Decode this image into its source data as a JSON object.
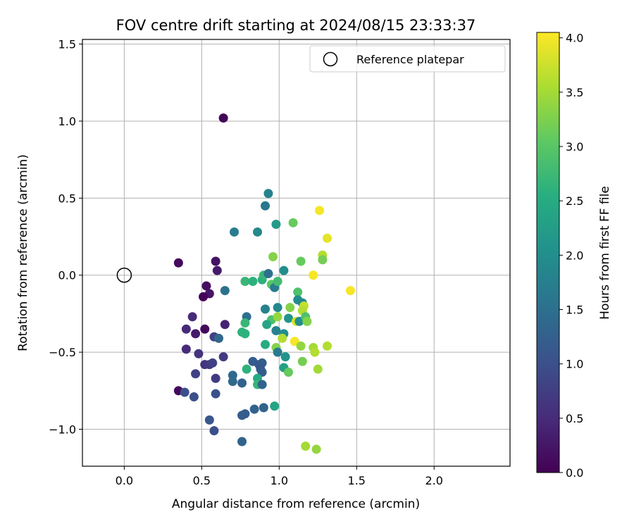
{
  "chart_data": {
    "type": "scatter",
    "title": "FOV centre drift starting at 2024/08/15 23:33:37",
    "xlabel": "Angular distance from reference (arcmin)",
    "ylabel": "Rotation from reference (arcmin)",
    "xlim": [
      -0.27,
      2.49
    ],
    "ylim": [
      -1.24,
      1.53
    ],
    "xticks": [
      0.0,
      0.5,
      1.0,
      1.5,
      2.0
    ],
    "xtick_labels": [
      "0.0",
      "0.5",
      "1.0",
      "1.5",
      "2.0"
    ],
    "yticks": [
      -1.0,
      -0.5,
      0.0,
      0.5,
      1.0,
      1.5
    ],
    "ytick_labels": [
      "−1.0",
      "−0.5",
      "0.0",
      "0.5",
      "1.0",
      "1.5"
    ],
    "grid": true,
    "legend_position": "top-right",
    "legend": [
      {
        "label": "Reference platepar",
        "marker": "open-circle"
      }
    ],
    "reference_point": {
      "x": 0.0,
      "y": 0.0
    },
    "colorbar": {
      "label": "Hours from first FF file",
      "colormap": "viridis",
      "min": 0.0,
      "max": 4.05,
      "ticks": [
        0.0,
        0.5,
        1.0,
        1.5,
        2.0,
        2.5,
        3.0,
        3.5,
        4.0
      ],
      "tick_labels": [
        "0.0",
        "0.5",
        "1.0",
        "1.5",
        "2.0",
        "2.5",
        "3.0",
        "3.5",
        "4.0"
      ]
    },
    "points": [
      {
        "x": 0.64,
        "y": 1.02,
        "h": 0.05
      },
      {
        "x": 0.35,
        "y": 0.08,
        "h": 0.1
      },
      {
        "x": 0.59,
        "y": 0.09,
        "h": 0.2
      },
      {
        "x": 0.6,
        "y": 0.03,
        "h": 0.3
      },
      {
        "x": 0.53,
        "y": -0.07,
        "h": 0.15
      },
      {
        "x": 0.55,
        "y": -0.12,
        "h": 0.25
      },
      {
        "x": 0.51,
        "y": -0.14,
        "h": 0.05
      },
      {
        "x": 0.44,
        "y": -0.27,
        "h": 0.5
      },
      {
        "x": 0.65,
        "y": -0.32,
        "h": 0.4
      },
      {
        "x": 0.4,
        "y": -0.35,
        "h": 0.5
      },
      {
        "x": 0.46,
        "y": -0.38,
        "h": 0.3
      },
      {
        "x": 0.52,
        "y": -0.35,
        "h": 0.1
      },
      {
        "x": 0.58,
        "y": -0.4,
        "h": 0.8
      },
      {
        "x": 0.61,
        "y": -0.41,
        "h": 1.4
      },
      {
        "x": 0.4,
        "y": -0.48,
        "h": 0.5
      },
      {
        "x": 0.48,
        "y": -0.51,
        "h": 0.6
      },
      {
        "x": 0.64,
        "y": -0.53,
        "h": 0.7
      },
      {
        "x": 0.52,
        "y": -0.58,
        "h": 0.6
      },
      {
        "x": 0.55,
        "y": -0.58,
        "h": 0.7
      },
      {
        "x": 0.57,
        "y": -0.57,
        "h": 0.8
      },
      {
        "x": 0.46,
        "y": -0.64,
        "h": 0.8
      },
      {
        "x": 0.59,
        "y": -0.67,
        "h": 0.7
      },
      {
        "x": 0.35,
        "y": -0.75,
        "h": 0.1
      },
      {
        "x": 0.39,
        "y": -0.76,
        "h": 1.0
      },
      {
        "x": 0.45,
        "y": -0.79,
        "h": 1.0
      },
      {
        "x": 0.59,
        "y": -0.77,
        "h": 1.0
      },
      {
        "x": 0.55,
        "y": -0.94,
        "h": 1.1
      },
      {
        "x": 0.58,
        "y": -1.01,
        "h": 1.0
      },
      {
        "x": 0.65,
        "y": -0.1,
        "h": 1.5
      },
      {
        "x": 0.71,
        "y": 0.28,
        "h": 1.7
      },
      {
        "x": 0.86,
        "y": 0.28,
        "h": 1.9
      },
      {
        "x": 0.91,
        "y": 0.45,
        "h": 1.6
      },
      {
        "x": 0.93,
        "y": 0.53,
        "h": 1.8
      },
      {
        "x": 0.98,
        "y": 0.33,
        "h": 2.2
      },
      {
        "x": 1.09,
        "y": 0.34,
        "h": 3.1
      },
      {
        "x": 0.79,
        "y": -0.27,
        "h": 1.5
      },
      {
        "x": 0.78,
        "y": -0.31,
        "h": 2.7
      },
      {
        "x": 0.76,
        "y": -0.37,
        "h": 2.6
      },
      {
        "x": 0.78,
        "y": -0.38,
        "h": 2.6
      },
      {
        "x": 0.7,
        "y": -0.65,
        "h": 1.4
      },
      {
        "x": 0.7,
        "y": -0.69,
        "h": 1.4
      },
      {
        "x": 0.76,
        "y": -0.7,
        "h": 1.3
      },
      {
        "x": 0.79,
        "y": -0.61,
        "h": 2.6
      },
      {
        "x": 0.83,
        "y": -0.56,
        "h": 1.2
      },
      {
        "x": 0.87,
        "y": -0.58,
        "h": 1.1
      },
      {
        "x": 0.89,
        "y": -0.57,
        "h": 1.2
      },
      {
        "x": 0.88,
        "y": -0.61,
        "h": 1.1
      },
      {
        "x": 0.89,
        "y": -0.63,
        "h": 1.2
      },
      {
        "x": 0.86,
        "y": -0.67,
        "h": 2.5
      },
      {
        "x": 0.86,
        "y": -0.71,
        "h": 2.7
      },
      {
        "x": 0.89,
        "y": -0.71,
        "h": 1.3
      },
      {
        "x": 0.76,
        "y": -0.91,
        "h": 1.2
      },
      {
        "x": 0.78,
        "y": -0.9,
        "h": 1.2
      },
      {
        "x": 0.84,
        "y": -0.87,
        "h": 1.3
      },
      {
        "x": 0.9,
        "y": -0.86,
        "h": 1.3
      },
      {
        "x": 0.97,
        "y": -0.85,
        "h": 2.4
      },
      {
        "x": 0.76,
        "y": -1.08,
        "h": 1.3
      },
      {
        "x": 0.78,
        "y": -0.04,
        "h": 2.7
      },
      {
        "x": 0.83,
        "y": -0.04,
        "h": 2.6
      },
      {
        "x": 0.89,
        "y": -0.03,
        "h": 2.6
      },
      {
        "x": 0.9,
        "y": 0.0,
        "h": 2.7
      },
      {
        "x": 0.93,
        "y": 0.01,
        "h": 1.5
      },
      {
        "x": 0.95,
        "y": -0.06,
        "h": 3.0
      },
      {
        "x": 0.97,
        "y": -0.08,
        "h": 1.7
      },
      {
        "x": 0.99,
        "y": -0.04,
        "h": 2.8
      },
      {
        "x": 1.03,
        "y": 0.03,
        "h": 2.0
      },
      {
        "x": 0.96,
        "y": 0.12,
        "h": 3.3
      },
      {
        "x": 1.14,
        "y": 0.09,
        "h": 3.1
      },
      {
        "x": 1.12,
        "y": -0.11,
        "h": 2.9
      },
      {
        "x": 1.12,
        "y": -0.16,
        "h": 2.0
      },
      {
        "x": 1.15,
        "y": -0.18,
        "h": 1.9
      },
      {
        "x": 0.91,
        "y": -0.22,
        "h": 1.8
      },
      {
        "x": 0.99,
        "y": -0.21,
        "h": 1.9
      },
      {
        "x": 1.07,
        "y": -0.21,
        "h": 3.3
      },
      {
        "x": 1.16,
        "y": -0.2,
        "h": 3.7
      },
      {
        "x": 1.15,
        "y": -0.23,
        "h": 3.6
      },
      {
        "x": 0.95,
        "y": -0.29,
        "h": 2.9
      },
      {
        "x": 0.92,
        "y": -0.32,
        "h": 2.4
      },
      {
        "x": 0.99,
        "y": -0.27,
        "h": 3.4
      },
      {
        "x": 1.06,
        "y": -0.28,
        "h": 2.1
      },
      {
        "x": 1.11,
        "y": -0.3,
        "h": 3.8
      },
      {
        "x": 1.13,
        "y": -0.3,
        "h": 2.0
      },
      {
        "x": 1.17,
        "y": -0.27,
        "h": 2.9
      },
      {
        "x": 1.18,
        "y": -0.3,
        "h": 3.3
      },
      {
        "x": 0.98,
        "y": -0.36,
        "h": 1.8
      },
      {
        "x": 1.03,
        "y": -0.38,
        "h": 2.0
      },
      {
        "x": 1.02,
        "y": -0.41,
        "h": 3.6
      },
      {
        "x": 0.91,
        "y": -0.45,
        "h": 2.5
      },
      {
        "x": 0.98,
        "y": -0.47,
        "h": 3.3
      },
      {
        "x": 0.99,
        "y": -0.5,
        "h": 1.7
      },
      {
        "x": 1.04,
        "y": -0.53,
        "h": 2.1
      },
      {
        "x": 1.03,
        "y": -0.6,
        "h": 2.3
      },
      {
        "x": 1.06,
        "y": -0.63,
        "h": 3.1
      },
      {
        "x": 1.1,
        "y": -0.43,
        "h": 4.0
      },
      {
        "x": 1.14,
        "y": -0.46,
        "h": 3.4
      },
      {
        "x": 1.22,
        "y": -0.47,
        "h": 3.5
      },
      {
        "x": 1.23,
        "y": -0.5,
        "h": 3.6
      },
      {
        "x": 1.31,
        "y": -0.46,
        "h": 3.6
      },
      {
        "x": 1.15,
        "y": -0.56,
        "h": 3.2
      },
      {
        "x": 1.25,
        "y": -0.61,
        "h": 3.5
      },
      {
        "x": 1.17,
        "y": -1.11,
        "h": 3.5
      },
      {
        "x": 1.24,
        "y": -1.13,
        "h": 3.4
      },
      {
        "x": 1.26,
        "y": 0.42,
        "h": 4.0
      },
      {
        "x": 1.31,
        "y": 0.24,
        "h": 3.9
      },
      {
        "x": 1.28,
        "y": 0.13,
        "h": 3.6
      },
      {
        "x": 1.28,
        "y": 0.1,
        "h": 3.2
      },
      {
        "x": 1.22,
        "y": 0.0,
        "h": 4.0
      },
      {
        "x": 1.46,
        "y": -0.1,
        "h": 4.0
      }
    ]
  }
}
